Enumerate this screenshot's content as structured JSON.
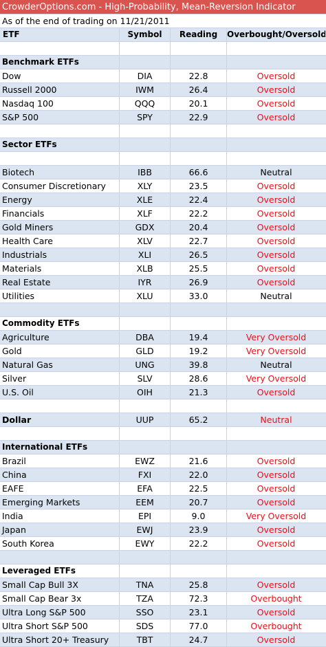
{
  "title": "CrowderOptions.com - High-Probability, Mean-Reversion Indicator",
  "subtitle": "As of the end of trading on 11/21/2011",
  "headers": {
    "etf": "ETF",
    "symbol": "Symbol",
    "reading": "Reading",
    "status": "Overbought/Oversold"
  },
  "colors": {
    "title_bg": "#d9534f",
    "oversold": "#e8101a",
    "neutral": "#000000",
    "row_stripe": "#dbe5f1"
  },
  "rows": [
    {
      "kind": "blank"
    },
    {
      "kind": "section",
      "label": "Benchmark ETFs"
    },
    {
      "kind": "data",
      "name": "Dow",
      "symbol": "DIA",
      "reading": "22.8",
      "status": "Oversold",
      "tone": "red"
    },
    {
      "kind": "data",
      "name": "Russell 2000",
      "symbol": "IWM",
      "reading": "26.4",
      "status": "Oversold",
      "tone": "red"
    },
    {
      "kind": "data",
      "name": "Nasdaq 100",
      "symbol": "QQQ",
      "reading": "20.1",
      "status": "Oversold",
      "tone": "red"
    },
    {
      "kind": "data",
      "name": "S&P 500",
      "symbol": "SPY",
      "reading": "22.9",
      "status": "Oversold",
      "tone": "red"
    },
    {
      "kind": "blank"
    },
    {
      "kind": "section",
      "label": "Sector ETFs"
    },
    {
      "kind": "blank"
    },
    {
      "kind": "data",
      "name": "Biotech",
      "symbol": "IBB",
      "reading": "66.6",
      "status": "Neutral",
      "tone": "neutral"
    },
    {
      "kind": "data",
      "name": "Consumer Discretionary",
      "symbol": "XLY",
      "reading": "23.5",
      "status": "Oversold",
      "tone": "red"
    },
    {
      "kind": "data",
      "name": "Energy",
      "symbol": "XLE",
      "reading": "22.4",
      "status": "Oversold",
      "tone": "red"
    },
    {
      "kind": "data",
      "name": "Financials",
      "symbol": "XLF",
      "reading": "22.2",
      "status": "Oversold",
      "tone": "red"
    },
    {
      "kind": "data",
      "name": "Gold Miners",
      "symbol": "GDX",
      "reading": "20.4",
      "status": "Oversold",
      "tone": "red"
    },
    {
      "kind": "data",
      "name": "Health Care",
      "symbol": "XLV",
      "reading": "22.7",
      "status": "Oversold",
      "tone": "red"
    },
    {
      "kind": "data",
      "name": "Industrials",
      "symbol": "XLI",
      "reading": "26.5",
      "status": "Oversold",
      "tone": "red"
    },
    {
      "kind": "data",
      "name": "Materials",
      "symbol": "XLB",
      "reading": "25.5",
      "status": "Oversold",
      "tone": "red"
    },
    {
      "kind": "data",
      "name": "Real Estate",
      "symbol": "IYR",
      "reading": "26.9",
      "status": "Oversold",
      "tone": "red"
    },
    {
      "kind": "data",
      "name": "Utilities",
      "symbol": "XLU",
      "reading": "33.0",
      "status": "Neutral",
      "tone": "neutral"
    },
    {
      "kind": "blank"
    },
    {
      "kind": "section",
      "label": "Commodity ETFs"
    },
    {
      "kind": "data",
      "name": "Agriculture",
      "symbol": "DBA",
      "reading": "19.4",
      "status": "Very Oversold",
      "tone": "red"
    },
    {
      "kind": "data",
      "name": "Gold",
      "symbol": "GLD",
      "reading": "19.2",
      "status": "Very Oversold",
      "tone": "red"
    },
    {
      "kind": "data",
      "name": "Natural Gas",
      "symbol": "UNG",
      "reading": "39.8",
      "status": "Neutral",
      "tone": "neutral"
    },
    {
      "kind": "data",
      "name": "Silver",
      "symbol": "SLV",
      "reading": "28.6",
      "status": "Very Oversold",
      "tone": "red"
    },
    {
      "kind": "data",
      "name": "U.S. Oil",
      "symbol": "OIH",
      "reading": "21.3",
      "status": "Oversold",
      "tone": "red"
    },
    {
      "kind": "blank"
    },
    {
      "kind": "data",
      "name": "Dollar",
      "symbol": "UUP",
      "reading": "65.2",
      "status": "Neutral",
      "tone": "red",
      "bold": true
    },
    {
      "kind": "blank"
    },
    {
      "kind": "section",
      "label": "International ETFs"
    },
    {
      "kind": "data",
      "name": "Brazil",
      "symbol": "EWZ",
      "reading": "21.6",
      "status": "Oversold",
      "tone": "red"
    },
    {
      "kind": "data",
      "name": "China",
      "symbol": "FXI",
      "reading": "22.0",
      "status": "Oversold",
      "tone": "red"
    },
    {
      "kind": "data",
      "name": "EAFE",
      "symbol": "EFA",
      "reading": "22.5",
      "status": "Oversold",
      "tone": "red"
    },
    {
      "kind": "data",
      "name": "Emerging Markets",
      "symbol": "EEM",
      "reading": "20.7",
      "status": "Oversold",
      "tone": "red"
    },
    {
      "kind": "data",
      "name": "India",
      "symbol": "EPI",
      "reading": "9.0",
      "status": "Very Oversold",
      "tone": "red"
    },
    {
      "kind": "data",
      "name": "Japan",
      "symbol": "EWJ",
      "reading": "23.9",
      "status": "Oversold",
      "tone": "red"
    },
    {
      "kind": "data",
      "name": "South Korea",
      "symbol": "EWY",
      "reading": "22.2",
      "status": "Oversold",
      "tone": "red"
    },
    {
      "kind": "blank"
    },
    {
      "kind": "section",
      "label": "Leveraged ETFs"
    },
    {
      "kind": "data",
      "name": "Small Cap Bull 3X",
      "symbol": "TNA",
      "reading": "25.8",
      "status": "Oversold",
      "tone": "red"
    },
    {
      "kind": "data",
      "name": "Small Cap Bear 3x",
      "symbol": "TZA",
      "reading": "72.3",
      "status": "Overbought",
      "tone": "red"
    },
    {
      "kind": "data",
      "name": "Ultra Long S&P 500",
      "symbol": "SSO",
      "reading": "23.1",
      "status": "Oversold",
      "tone": "red"
    },
    {
      "kind": "data",
      "name": "Ultra Short S&P 500",
      "symbol": "SDS",
      "reading": "77.0",
      "status": "Overbought",
      "tone": "red"
    },
    {
      "kind": "data",
      "name": "Ultra Short 20+ Treasury",
      "symbol": "TBT",
      "reading": "24.7",
      "status": "Oversold",
      "tone": "red"
    }
  ]
}
